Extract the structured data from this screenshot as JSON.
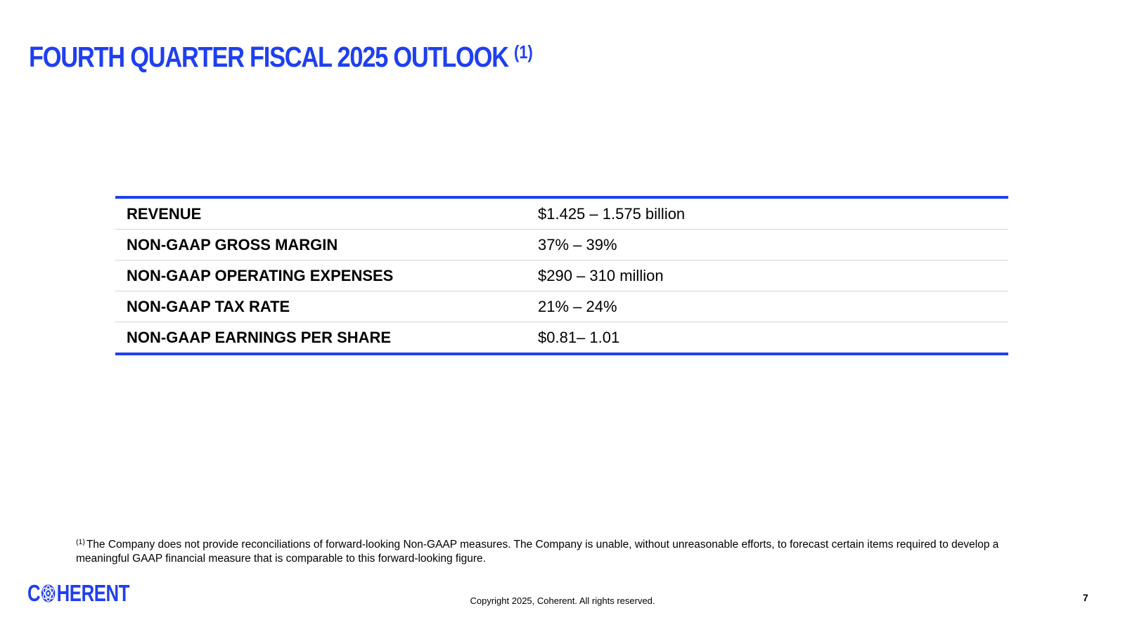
{
  "slide": {
    "title": "FOURTH QUARTER FISCAL 2025 OUTLOOK",
    "title_footnote_marker": "(1)",
    "outlook": [
      {
        "metric": "REVENUE",
        "value": "$1.425 – 1.575 billion"
      },
      {
        "metric": "NON-GAAP GROSS MARGIN",
        "value": "37% – 39%"
      },
      {
        "metric": "NON-GAAP OPERATING EXPENSES",
        "value": "$290 – 310 million"
      },
      {
        "metric": "NON-GAAP TAX RATE",
        "value": "21% – 24%"
      },
      {
        "metric": "NON-GAAP EARNINGS PER SHARE",
        "value": "$0.81– 1.01"
      }
    ],
    "footnote_marker": "(1)",
    "footnote_text": "The Company does not provide reconciliations of forward-looking Non-GAAP measures. The Company is unable, without unreasonable efforts, to forecast certain items required to develop a meaningful GAAP financial measure that is comparable to this forward-looking figure.",
    "logo": {
      "before_icon": "C",
      "after_icon": "HERENT",
      "icon": "globe-icon"
    },
    "copyright": "Copyright 2025, Coherent. All rights reserved.",
    "page_number": "7"
  },
  "colors": {
    "accent": "#1f3ff0",
    "row_divider": "#d4d4d4",
    "text": "#000000"
  }
}
